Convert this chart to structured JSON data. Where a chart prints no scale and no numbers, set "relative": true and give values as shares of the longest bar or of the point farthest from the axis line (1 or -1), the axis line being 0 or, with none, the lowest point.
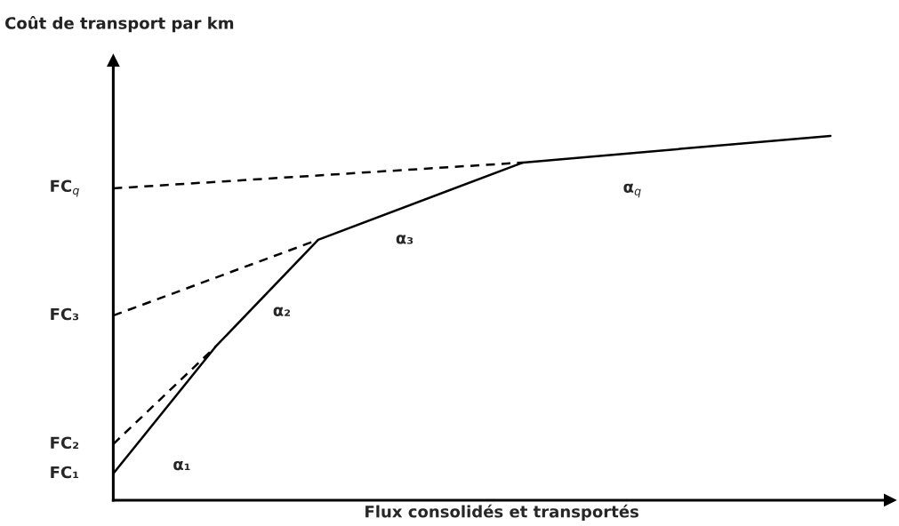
{
  "chart_data": {
    "type": "line",
    "title": "Coût de transport par km",
    "xlabel": "Flux consolidés et transportés",
    "categories": [
      null,
      null,
      null,
      null,
      null,
      null,
      null,
      null
    ],
    "series": [
      {
        "color": "#000000",
        "line_style": "solid",
        "values": [
          0.073,
          0.422,
          0.715,
          null,
          0.927,
          null,
          null,
          1
        ]
      },
      {
        "color": "#000000",
        "line_style": "dashed",
        "values": [
          0.154,
          0.422,
          null,
          null,
          null,
          null,
          null,
          null
        ]
      },
      {
        "color": "#000000",
        "line_style": "dashed",
        "values": [
          0.507,
          null,
          0.715,
          null,
          null,
          null,
          null,
          null
        ]
      },
      {
        "color": "#000000",
        "line_style": "dashed",
        "values": [
          0.856,
          null,
          null,
          null,
          0.927,
          null,
          null,
          null
        ]
      }
    ],
    "relative": true,
    "annotations": [
      "α₁",
      "α₂",
      "α₃",
      "α$_{q}$",
      "FC₁",
      "FC₂",
      "FC₃",
      "FC$_{q}$"
    ],
    "grid": false,
    "marker": "none"
  }
}
